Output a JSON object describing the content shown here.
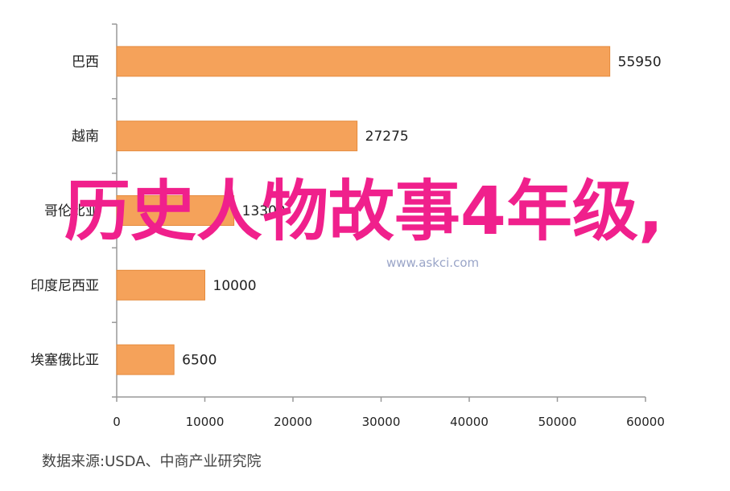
{
  "chart_data": {
    "type": "bar",
    "orientation": "horizontal",
    "categories": [
      "巴西",
      "越南",
      "哥伦比亚",
      "印度尼西亚",
      "埃塞俄比亚"
    ],
    "values": [
      55950,
      27275,
      13300,
      10000,
      6500
    ],
    "value_labels": [
      "55950",
      "27275",
      "13300",
      "10000",
      "6500"
    ],
    "x_ticks": [
      "0",
      "10000",
      "20000",
      "30000",
      "40000",
      "50000",
      "60000"
    ],
    "xlim": [
      0,
      60000
    ],
    "bar_color": "#f5a25a",
    "bar_edge_color": "#e58a3c",
    "grid": false
  },
  "source_text": "数据来源:USDA、中商产业研究院",
  "watermark_text": "www.askci.com",
  "overlay_text": "历史人物故事4年级,",
  "overlay_color": "#f0208c"
}
